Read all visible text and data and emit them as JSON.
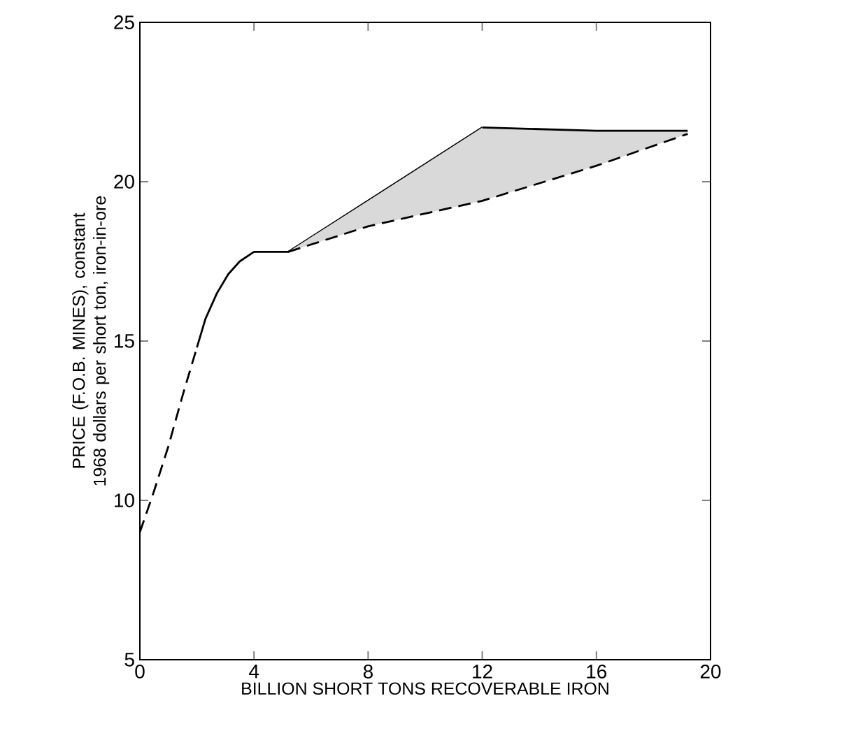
{
  "chart_data": {
    "type": "line",
    "xlabel": "BILLION SHORT TONS RECOVERABLE IRON",
    "ylabel": "PRICE (F.O.B. MINES), constant 1968 dollars per short ton, iron-in-ore",
    "xlim": [
      0,
      20
    ],
    "ylim": [
      5,
      25
    ],
    "xticks": [
      0,
      4,
      8,
      12,
      16,
      20
    ],
    "yticks": [
      5,
      10,
      15,
      20,
      25
    ],
    "series": [
      {
        "color": "#000000",
        "line_style": "dashed",
        "x": [
          0,
          0.5,
          1,
          1.5,
          2
        ],
        "values": [
          9.0,
          10.3,
          11.7,
          13.3,
          14.8
        ]
      },
      {
        "color": "#000000",
        "line_style": "solid",
        "x": [
          2,
          2.3,
          2.7,
          3.1,
          3.5,
          4,
          5.2,
          12
        ],
        "values": [
          14.8,
          15.7,
          16.5,
          17.1,
          17.5,
          17.8,
          17.8,
          21.7
        ]
      },
      {
        "color": "#000000",
        "line_style": "dashed",
        "x": [
          5.2,
          8,
          12,
          16,
          19.2
        ],
        "values": [
          17.8,
          18.6,
          19.4,
          20.5,
          21.5
        ],
        "lower": [
          17.8,
          18.6,
          19.4,
          20.5,
          21.5
        ],
        "upper": [
          17.8,
          19.4,
          21.7,
          21.6,
          21.6
        ]
      },
      {
        "color": "#000000",
        "line_style": "solid",
        "x": [
          12,
          16,
          19.2
        ],
        "values": [
          21.7,
          21.6,
          21.6
        ]
      }
    ]
  }
}
